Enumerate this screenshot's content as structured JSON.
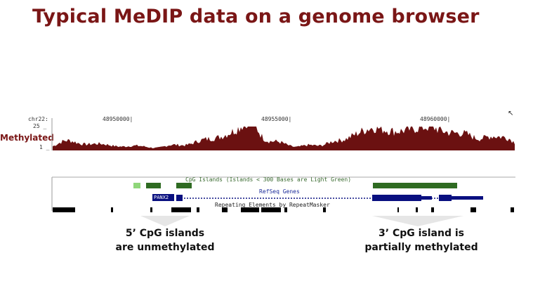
{
  "title": "Typical MeDIP data on a genome browser",
  "browser": {
    "chrom_label": "chr22:",
    "scale_max": "25 _",
    "scale_min": "1 _",
    "positions": [
      "48950000|",
      "48955000|",
      "48960000|"
    ],
    "signal_label": "Methylated",
    "cpg_track_title": "CpG Islands (Islands < 300 Bases are Light Green)",
    "refseq_title": "RefSeq Genes",
    "gene_name": "PANX2",
    "repeat_title": "Repeating Elements by RepeatMasker"
  },
  "callouts": {
    "left": [
      "5’ CpG islands",
      "are unmethylated"
    ],
    "right": [
      "3’ CpG island is",
      "partially methylated"
    ]
  },
  "colors": {
    "title": "#7a1616",
    "signal": "#6b1111",
    "cpg_dark": "#2f6b22",
    "cpg_light": "#8fd67a",
    "gene": "#0a1080",
    "repeat": "#000000"
  },
  "icons": {
    "cursor": "mouse-pointer-icon"
  }
}
